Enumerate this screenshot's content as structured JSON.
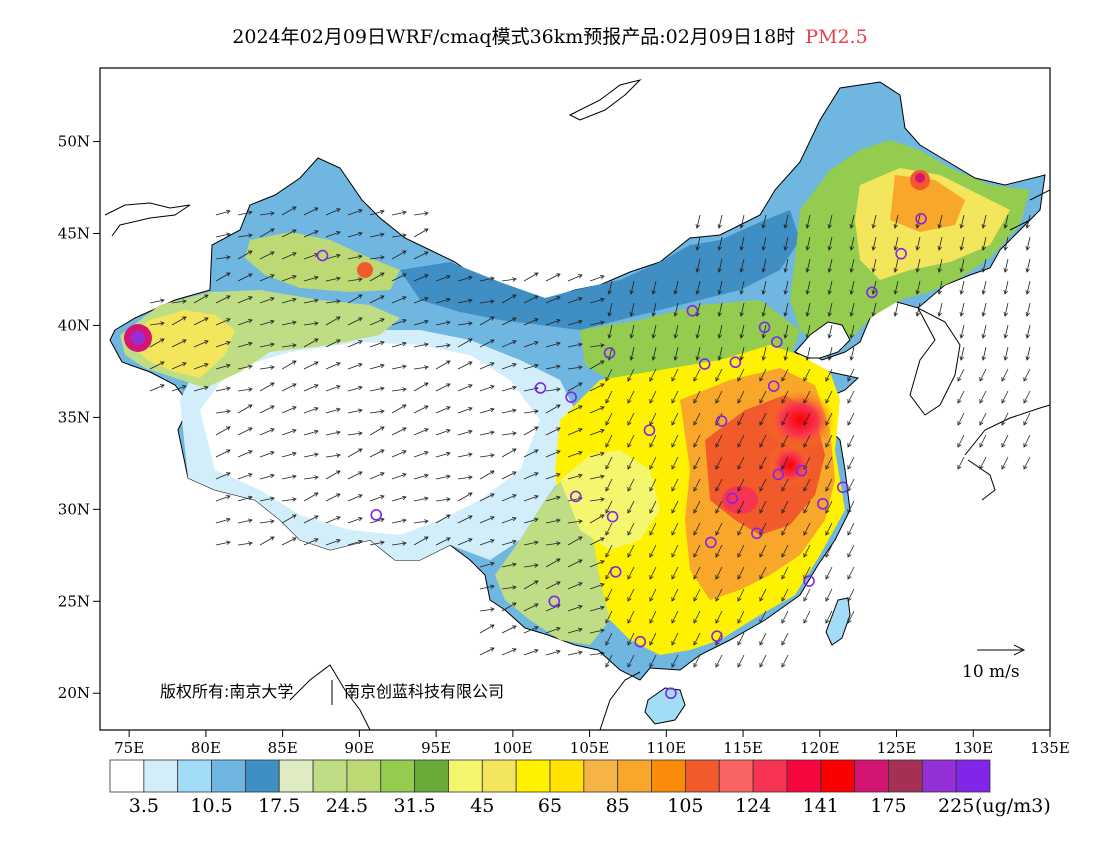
{
  "title": {
    "main": "2024年02月09日WRF/cmaq模式36km预报产品:02月09日18时",
    "pollutant": "PM2.5",
    "pollutant_color": "#e8404f"
  },
  "map": {
    "lon_ticks": [
      "75E",
      "80E",
      "85E",
      "90E",
      "95E",
      "100E",
      "105E",
      "110E",
      "115E",
      "120E",
      "125E",
      "130E",
      "135E"
    ],
    "lat_ticks": [
      "50N",
      "45N",
      "40N",
      "35N",
      "30N",
      "25N",
      "20N"
    ],
    "copyright_left": "版权所有:南京大学",
    "copyright_right": "南京创蓝科技有限公司",
    "wind_scale_label": "10 m/s"
  },
  "colorbar": {
    "colors": [
      "#ffffff",
      "#d2eefa",
      "#a3dcf6",
      "#6fb6e0",
      "#3f8fc4",
      "#dfecc2",
      "#bedd84",
      "#bcd974",
      "#94cc50",
      "#6aaa38",
      "#f4f66e",
      "#f4e65c",
      "#fff200",
      "#ffe200",
      "#f7b446",
      "#f8a72a",
      "#fa8c0b",
      "#f15a2b",
      "#fa6363",
      "#f73451",
      "#f5063f",
      "#fa0000",
      "#d41574",
      "#a53053",
      "#9430d6",
      "#8126e8"
    ],
    "labels": [
      "3.5",
      "10.5",
      "17.5",
      "24.5",
      "31.5",
      "45",
      "65",
      "85",
      "105",
      "124",
      "141",
      "175",
      "225"
    ],
    "unit": "(ug/m3)"
  },
  "cities": [
    [
      87.6,
      43.8
    ],
    [
      91.1,
      29.7
    ],
    [
      101.8,
      36.6
    ],
    [
      103.8,
      36.1
    ],
    [
      106.3,
      38.5
    ],
    [
      111.7,
      40.8
    ],
    [
      116.4,
      39.9
    ],
    [
      117.2,
      39.1
    ],
    [
      112.5,
      37.9
    ],
    [
      114.5,
      38.0
    ],
    [
      117.0,
      36.7
    ],
    [
      113.6,
      34.8
    ],
    [
      108.9,
      34.3
    ],
    [
      104.1,
      30.7
    ],
    [
      106.5,
      29.6
    ],
    [
      114.3,
      30.6
    ],
    [
      117.3,
      31.9
    ],
    [
      118.8,
      32.1
    ],
    [
      121.5,
      31.2
    ],
    [
      120.2,
      30.3
    ],
    [
      112.9,
      28.2
    ],
    [
      115.9,
      28.7
    ],
    [
      119.3,
      26.1
    ],
    [
      113.3,
      23.1
    ],
    [
      108.3,
      22.8
    ],
    [
      106.7,
      26.6
    ],
    [
      102.7,
      25.0
    ],
    [
      110.3,
      20.0
    ],
    [
      125.3,
      43.9
    ],
    [
      126.6,
      45.8
    ],
    [
      123.4,
      41.8
    ]
  ]
}
